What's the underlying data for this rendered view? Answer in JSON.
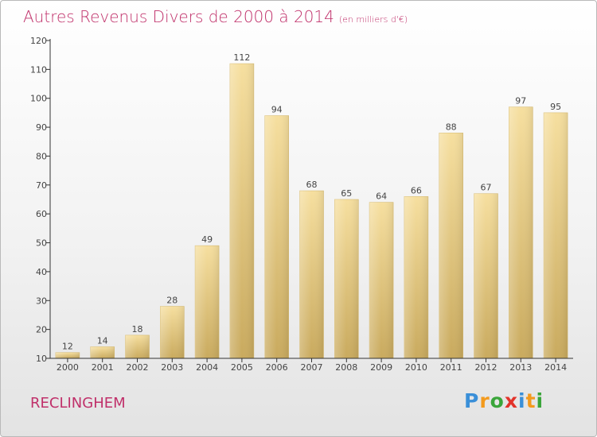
{
  "chart_data": {
    "type": "bar",
    "title": "Autres Revenus Divers de 2000 à 2014",
    "subtitle": "(en milliers d'€)",
    "xlabel": "",
    "ylabel": "",
    "categories": [
      "2000",
      "2001",
      "2002",
      "2003",
      "2004",
      "2005",
      "2006",
      "2007",
      "2008",
      "2009",
      "2010",
      "2011",
      "2012",
      "2013",
      "2014"
    ],
    "values": [
      12,
      14,
      18,
      28,
      49,
      112,
      94,
      68,
      65,
      64,
      66,
      88,
      67,
      97,
      95
    ],
    "ylim": [
      10,
      120
    ],
    "yticks": [
      10,
      20,
      30,
      40,
      50,
      60,
      70,
      80,
      90,
      100,
      110,
      120
    ],
    "grid": false,
    "bar_color": "#e9cf8a",
    "show_value_labels": true
  },
  "commune": "RECLINGHEM",
  "brand": {
    "name": "Proxiti",
    "letters": [
      {
        "char": "P",
        "color": "#3a8fd8"
      },
      {
        "char": "r",
        "color": "#f39a1d"
      },
      {
        "char": "o",
        "color": "#3aa53a"
      },
      {
        "char": "x",
        "color": "#e2332a"
      },
      {
        "char": "i",
        "color": "#3a8fd8"
      },
      {
        "char": "t",
        "color": "#f39a1d"
      },
      {
        "char": "i",
        "color": "#3aa53a"
      }
    ]
  },
  "colors": {
    "title": "#c0306a",
    "axis": "#333333",
    "label": "#444444"
  }
}
